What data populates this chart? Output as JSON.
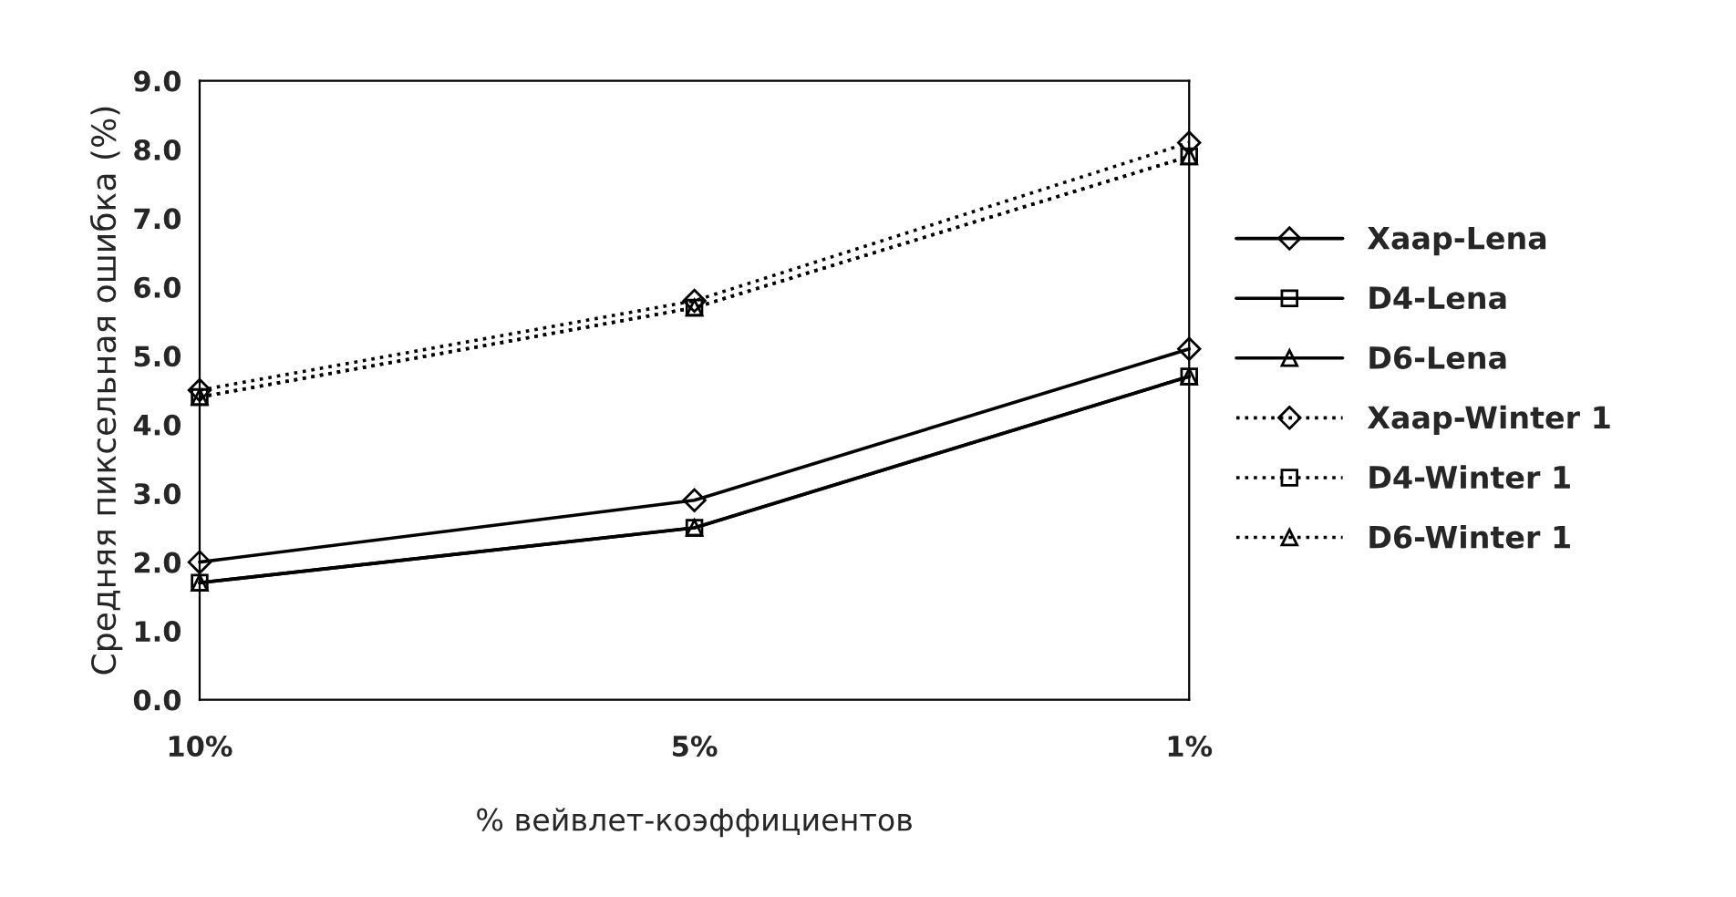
{
  "chart_data": {
    "type": "line",
    "xlabel": "% вейвлет-коэффициентов",
    "ylabel": "Средняя пиксельная ошибка (%)",
    "categories": [
      "10%",
      "5%",
      "1%"
    ],
    "ylim": [
      0,
      9
    ],
    "yticks": [
      {
        "value": 0,
        "label": "0.0"
      },
      {
        "value": 1,
        "label": "1.0"
      },
      {
        "value": 2,
        "label": "2.0"
      },
      {
        "value": 3,
        "label": "3.0"
      },
      {
        "value": 4,
        "label": "4.0"
      },
      {
        "value": 5,
        "label": "5.0"
      },
      {
        "value": 6,
        "label": "6.0"
      },
      {
        "value": 7,
        "label": "7.0"
      },
      {
        "value": 8,
        "label": "8.0"
      },
      {
        "value": 9,
        "label": "9.0"
      }
    ],
    "grid": false,
    "legend": "right",
    "series": [
      {
        "name": "Хаар-Lena",
        "color": "#000000",
        "marker": "diamond",
        "line_style": "solid",
        "values": [
          2.0,
          2.9,
          5.1
        ]
      },
      {
        "name": "D4-Lena",
        "color": "#000000",
        "marker": "square",
        "line_style": "solid",
        "values": [
          1.7,
          2.5,
          4.7
        ]
      },
      {
        "name": "D6-Lena",
        "color": "#000000",
        "marker": "triangle",
        "line_style": "solid",
        "values": [
          1.7,
          2.5,
          4.7
        ]
      },
      {
        "name": "Хаар-Winter 1",
        "color": "#000000",
        "marker": "diamond",
        "line_style": "dotted",
        "values": [
          4.5,
          5.8,
          8.1
        ]
      },
      {
        "name": "D4-Winter 1",
        "color": "#000000",
        "marker": "square",
        "line_style": "dotted",
        "values": [
          4.4,
          5.7,
          7.9
        ]
      },
      {
        "name": "D6-Winter 1",
        "color": "#000000",
        "marker": "triangle",
        "line_style": "dotted",
        "values": [
          4.4,
          5.7,
          7.9
        ]
      }
    ]
  }
}
